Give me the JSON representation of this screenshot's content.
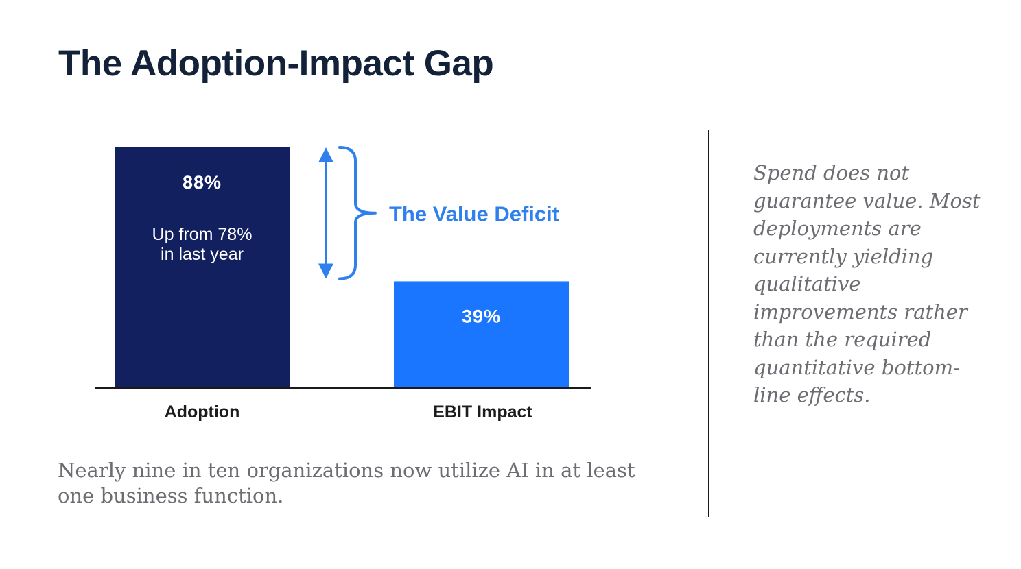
{
  "title": "The Adoption-Impact Gap",
  "caption": "Nearly nine in ten organizations now utilize AI in at least one business function.",
  "sidenote": "Spend does not guarantee value. Most deployments are currently yielding qualitative improvements rather than the required quantitative bottom-line effects.",
  "colors": {
    "adoption_bar": "#132060",
    "impact_bar": "#1a75ff",
    "annotation": "#2f80ed",
    "title": "#132238",
    "body_text": "#6b6d72"
  },
  "chart_data": {
    "type": "bar",
    "categories": [
      "Adoption",
      "EBIT Impact"
    ],
    "values": [
      88,
      39
    ],
    "value_labels": [
      "88%",
      "39%"
    ],
    "bar_notes": [
      "Up from 78%\nin last year",
      ""
    ],
    "ylim": [
      0,
      88
    ],
    "annotation": {
      "label": "The Value Deficit",
      "from_value": 88,
      "to_value": 39
    },
    "xlabel": "",
    "ylabel": "",
    "grid": false
  }
}
